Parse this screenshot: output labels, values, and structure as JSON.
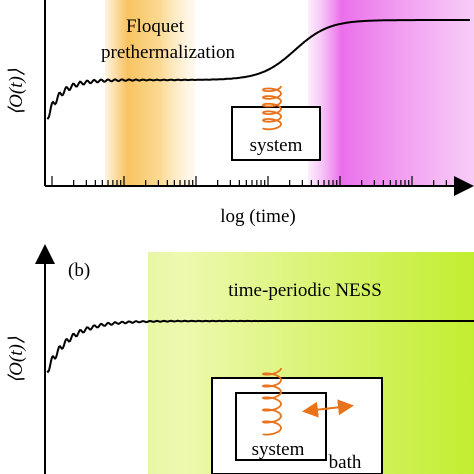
{
  "panel_a": {
    "y_label": "⟨O(t)⟩",
    "annotation": [
      "Floquet",
      "prethermalization"
    ],
    "box_label": "system",
    "x_label": "log (time)"
  },
  "panel_b": {
    "panel_label": "(b)",
    "y_label": "⟨O(t)⟩",
    "annotation": "time-periodic NESS",
    "inner_box_label": "system",
    "outer_box_label": "bath"
  }
}
